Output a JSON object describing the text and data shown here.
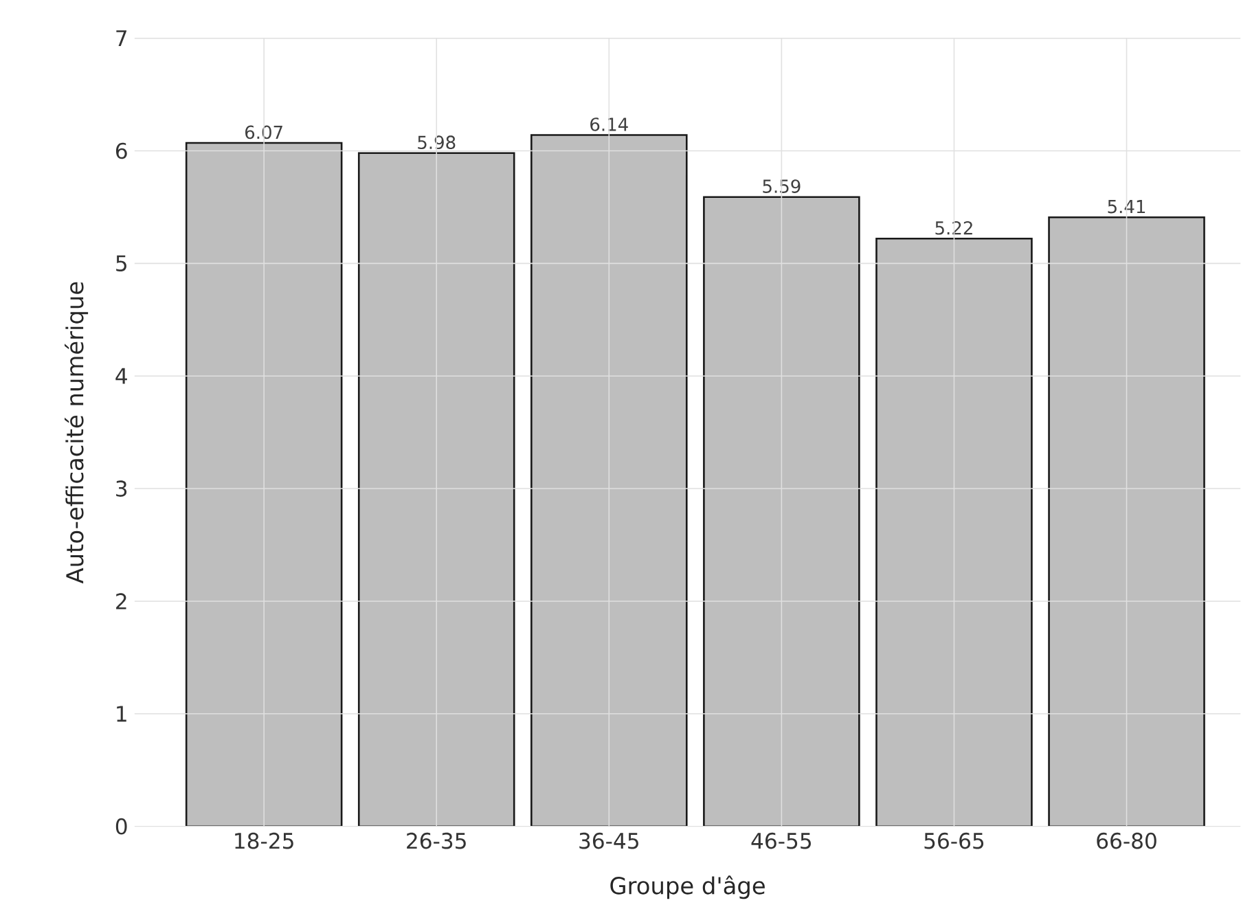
{
  "chart_data": {
    "type": "bar",
    "xlabel": "Groupe d'âge",
    "ylabel": "Auto-efficacité numérique",
    "categories": [
      "18-25",
      "26-35",
      "36-45",
      "46-55",
      "56-65",
      "66-80"
    ],
    "values": [
      6.07,
      5.98,
      6.14,
      5.59,
      5.22,
      5.41
    ],
    "color": "#bebebe",
    "ylim": [
      0,
      7
    ],
    "yticks": [
      0,
      1,
      2,
      3,
      4,
      5,
      6,
      7
    ],
    "grid": true,
    "data_labels": true
  }
}
